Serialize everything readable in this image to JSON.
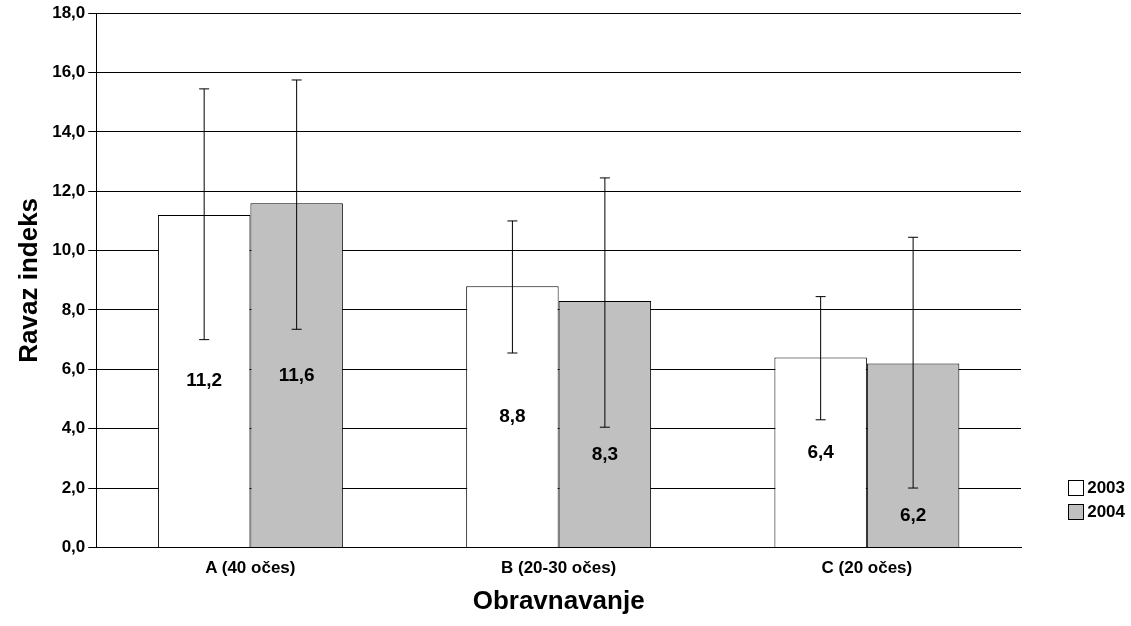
{
  "chart_data": {
    "type": "bar",
    "xlabel": "Obravnavanje",
    "ylabel": "Ravaz indeks",
    "categories": [
      "A (40 očes)",
      "B (20-30 očes)",
      "C (20 očes)"
    ],
    "series": [
      {
        "name": "2003",
        "color": "#ffffff",
        "values": [
          11.2,
          8.8,
          6.4
        ],
        "value_labels": [
          "11,2",
          "8,8",
          "6,4"
        ],
        "errors": [
          [
            7.0,
            15.45
          ],
          [
            6.55,
            11.0
          ],
          [
            4.3,
            8.45
          ]
        ]
      },
      {
        "name": "2004",
        "color": "#c0c0c0",
        "values": [
          11.6,
          8.3,
          6.2
        ],
        "value_labels": [
          "11,6",
          "8,3",
          "6,2"
        ],
        "errors": [
          [
            7.35,
            15.75
          ],
          [
            4.05,
            12.45
          ],
          [
            2.0,
            10.45
          ]
        ]
      }
    ],
    "ylim": [
      0,
      18
    ],
    "yticks": [
      {
        "value": 0,
        "label": "0,0"
      },
      {
        "value": 2,
        "label": "2,0"
      },
      {
        "value": 4,
        "label": "4,0"
      },
      {
        "value": 6,
        "label": "6,0"
      },
      {
        "value": 8,
        "label": "8,0"
      },
      {
        "value": 10,
        "label": "10,0"
      },
      {
        "value": 12,
        "label": "12,0"
      },
      {
        "value": 14,
        "label": "14,0"
      },
      {
        "value": 16,
        "label": "16,0"
      },
      {
        "value": 18,
        "label": "18,0"
      }
    ],
    "grid": "y",
    "legend": "bottom right"
  }
}
